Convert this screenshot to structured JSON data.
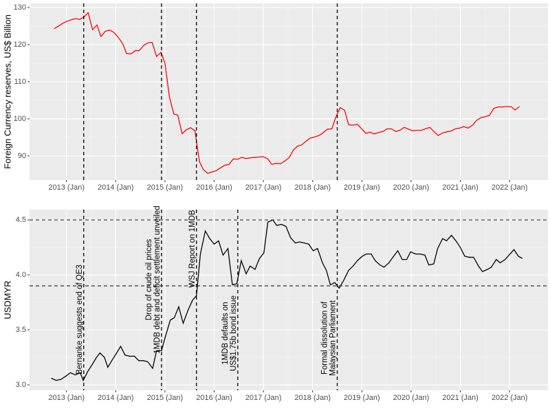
{
  "chart_data": [
    {
      "type": "line",
      "ylabel": "Foreign Currency reserves, US$ Billion",
      "xlim": [
        2012.25,
        2022.78
      ],
      "ylim": [
        83.5,
        131.1
      ],
      "xticks": [
        {
          "value": 2013,
          "label": "2013 (Jan)"
        },
        {
          "value": 2014,
          "label": "2014 (Jan)"
        },
        {
          "value": 2015,
          "label": "2015 (Jan)"
        },
        {
          "value": 2016,
          "label": "2016 (Jan)"
        },
        {
          "value": 2017,
          "label": "2017 (Jan)"
        },
        {
          "value": 2018,
          "label": "2018 (Jan)"
        },
        {
          "value": 2019,
          "label": "2019 (Jan)"
        },
        {
          "value": 2020,
          "label": "2020 (Jan)"
        },
        {
          "value": 2021,
          "label": "2021 (Jan)"
        },
        {
          "value": 2022,
          "label": "2022 (Jan)"
        }
      ],
      "yticks": [
        90,
        100,
        110,
        120,
        130
      ],
      "vlines": [
        2013.35,
        2014.93,
        2015.64,
        2018.5
      ],
      "series": [
        {
          "color": "#ff0000",
          "x": [
            2012.75,
            2012.84,
            2012.92,
            2013.01,
            2013.1,
            2013.18,
            2013.27,
            2013.36,
            2013.44,
            2013.53,
            2013.62,
            2013.7,
            2013.79,
            2013.88,
            2013.96,
            2014.05,
            2014.14,
            2014.22,
            2014.31,
            2014.4,
            2014.48,
            2014.57,
            2014.66,
            2014.74,
            2014.83,
            2014.92,
            2015.0,
            2015.09,
            2015.18,
            2015.26,
            2015.35,
            2015.44,
            2015.52,
            2015.61,
            2015.7,
            2015.78,
            2015.87,
            2015.96,
            2016.04,
            2016.13,
            2016.22,
            2016.3,
            2016.39,
            2016.48,
            2016.56,
            2016.65,
            2016.74,
            2016.82,
            2016.91,
            2017.0,
            2017.09,
            2017.17,
            2017.26,
            2017.35,
            2017.43,
            2017.52,
            2017.61,
            2017.69,
            2017.78,
            2017.87,
            2017.95,
            2018.04,
            2018.13,
            2018.21,
            2018.3,
            2018.39,
            2018.47,
            2018.56,
            2018.65,
            2018.73,
            2018.82,
            2018.91,
            2018.99,
            2019.08,
            2019.17,
            2019.25,
            2019.34,
            2019.43,
            2019.51,
            2019.6,
            2019.69,
            2019.77,
            2019.86,
            2019.95,
            2020.03,
            2020.12,
            2020.21,
            2020.29,
            2020.38,
            2020.47,
            2020.55,
            2020.64,
            2020.73,
            2020.81,
            2020.9,
            2020.99,
            2021.07,
            2021.16,
            2021.25,
            2021.33,
            2021.42,
            2021.51,
            2021.59,
            2021.68,
            2021.77,
            2021.85,
            2021.94,
            2022.03,
            2022.11,
            2022.2
          ],
          "values": [
            124.3,
            125.0,
            125.7,
            126.3,
            126.7,
            127.0,
            126.8,
            127.5,
            128.6,
            124.0,
            125.3,
            122.2,
            123.6,
            123.9,
            123.3,
            122.0,
            120.3,
            117.6,
            117.5,
            118.4,
            118.4,
            119.8,
            120.5,
            120.6,
            116.8,
            117.9,
            115.0,
            106.0,
            101.3,
            101.0,
            96.0,
            97.1,
            97.6,
            96.8,
            88.5,
            86.3,
            85.3,
            85.7,
            86.0,
            86.8,
            87.5,
            87.7,
            89.2,
            89.1,
            89.6,
            89.3,
            89.5,
            89.6,
            89.7,
            89.8,
            89.2,
            87.7,
            88.0,
            87.9,
            88.6,
            89.5,
            91.6,
            92.6,
            93.0,
            94.0,
            94.8,
            95.1,
            95.5,
            96.2,
            97.2,
            97.3,
            100.4,
            103.0,
            102.3,
            98.4,
            98.3,
            98.5,
            97.4,
            96.1,
            96.4,
            95.9,
            96.3,
            96.6,
            97.3,
            97.3,
            96.6,
            96.9,
            97.7,
            97.2,
            96.8,
            96.9,
            96.9,
            97.3,
            97.7,
            96.5,
            95.5,
            96.2,
            96.5,
            96.7,
            97.3,
            97.5,
            97.9,
            97.5,
            98.3,
            99.6,
            100.3,
            100.6,
            100.9,
            102.8,
            103.2,
            103.2,
            103.3,
            103.3,
            102.4,
            103.3
          ]
        }
      ]
    },
    {
      "type": "line",
      "ylabel": "USDMYR",
      "xlim": [
        2012.25,
        2022.78
      ],
      "ylim": [
        2.95,
        4.594
      ],
      "xticks": [
        {
          "value": 2013,
          "label": "2013 (Jan)"
        },
        {
          "value": 2014,
          "label": "2014 (Jan)"
        },
        {
          "value": 2015,
          "label": "2015 (Jan)"
        },
        {
          "value": 2016,
          "label": "2016 (Jan)"
        },
        {
          "value": 2017,
          "label": "2017 (Jan)"
        },
        {
          "value": 2018,
          "label": "2018 (Jan)"
        },
        {
          "value": 2019,
          "label": "2019 (Jan)"
        },
        {
          "value": 2020,
          "label": "2020 (Jan)"
        },
        {
          "value": 2021,
          "label": "2021 (Jan)"
        },
        {
          "value": 2022,
          "label": "2022 (Jan)"
        }
      ],
      "yticks": [
        {
          "value": 3,
          "label": "3.0"
        },
        3.5,
        {
          "value": 4,
          "label": "4.0"
        },
        4.5
      ],
      "vlines": [
        2013.35,
        2014.93,
        2015.64,
        2016.48,
        2018.5
      ],
      "hlines": [
        4.5,
        3.9
      ],
      "annotations": [
        {
          "x": 2013.35,
          "text": [
            "Bernanke suggests end of QE3"
          ]
        },
        {
          "x": 2014.93,
          "text": [
            "Drop of crude oil prices",
            "1MDB debt and deficit settlement unveiled"
          ]
        },
        {
          "x": 2015.64,
          "text": [
            "WSJ Report on 1MDB"
          ]
        },
        {
          "x": 2016.48,
          "text": [
            "1MDB defaults on",
            "US$1.75b bond issue"
          ]
        },
        {
          "x": 2018.5,
          "text": [
            "Formal dissolution of",
            "Malaysian Parliament"
          ]
        }
      ],
      "series": [
        {
          "color": "#000000",
          "x": [
            2012.69,
            2012.79,
            2012.89,
            2012.99,
            2013.08,
            2013.18,
            2013.28,
            2013.34,
            2013.43,
            2013.53,
            2013.61,
            2013.68,
            2013.77,
            2013.84,
            2013.92,
            2014.02,
            2014.1,
            2014.19,
            2014.28,
            2014.38,
            2014.47,
            2014.56,
            2014.65,
            2014.75,
            2014.83,
            2014.93,
            2015.01,
            2015.11,
            2015.19,
            2015.28,
            2015.37,
            2015.47,
            2015.56,
            2015.64,
            2015.72,
            2015.82,
            2015.91,
            2016.0,
            2016.09,
            2016.18,
            2016.28,
            2016.37,
            2016.46,
            2016.55,
            2016.65,
            2016.73,
            2016.83,
            2016.92,
            2017.01,
            2017.09,
            2017.19,
            2017.27,
            2017.37,
            2017.46,
            2017.55,
            2017.65,
            2017.73,
            2017.83,
            2017.92,
            2018.01,
            2018.1,
            2018.2,
            2018.28,
            2018.36,
            2018.45,
            2018.54,
            2018.63,
            2018.73,
            2018.82,
            2018.91,
            2019.01,
            2019.09,
            2019.19,
            2019.27,
            2019.37,
            2019.45,
            2019.55,
            2019.63,
            2019.73,
            2019.82,
            2019.91,
            2019.99,
            2020.09,
            2020.18,
            2020.28,
            2020.36,
            2020.46,
            2020.54,
            2020.64,
            2020.72,
            2020.82,
            2020.91,
            2021.0,
            2021.09,
            2021.18,
            2021.27,
            2021.37,
            2021.45,
            2021.55,
            2021.63,
            2021.73,
            2021.81,
            2021.91,
            2021.99,
            2022.09,
            2022.18,
            2022.26
          ],
          "values": [
            3.06,
            3.04,
            3.05,
            3.08,
            3.11,
            3.09,
            3.11,
            3.04,
            3.12,
            3.19,
            3.25,
            3.29,
            3.25,
            3.16,
            3.22,
            3.29,
            3.35,
            3.27,
            3.26,
            3.26,
            3.22,
            3.22,
            3.21,
            3.15,
            3.31,
            3.31,
            3.44,
            3.59,
            3.61,
            3.71,
            3.56,
            3.68,
            3.77,
            3.81,
            4.19,
            4.4,
            4.33,
            4.28,
            4.31,
            4.18,
            4.24,
            3.91,
            3.92,
            4.13,
            4.01,
            4.08,
            4.05,
            4.15,
            4.2,
            4.48,
            4.5,
            4.45,
            4.46,
            4.44,
            4.34,
            4.29,
            4.3,
            4.29,
            4.28,
            4.22,
            4.24,
            4.11,
            4.04,
            3.91,
            3.93,
            3.88,
            3.95,
            4.04,
            4.08,
            4.13,
            4.17,
            4.19,
            4.19,
            4.13,
            4.09,
            4.07,
            4.11,
            4.16,
            4.22,
            4.14,
            4.14,
            4.21,
            4.19,
            4.19,
            4.18,
            4.09,
            4.1,
            4.24,
            4.33,
            4.31,
            4.36,
            4.31,
            4.25,
            4.17,
            4.16,
            4.16,
            4.08,
            4.03,
            4.05,
            4.07,
            4.14,
            4.11,
            4.14,
            4.18,
            4.23,
            4.17,
            4.15
          ]
        }
      ]
    }
  ]
}
